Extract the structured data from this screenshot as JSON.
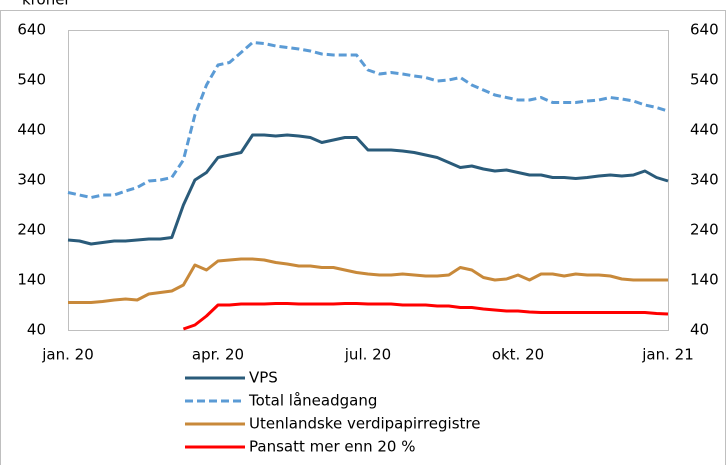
{
  "chart_data": {
    "type": "line",
    "y_label": "kroner",
    "categories": [
      "jan. 20",
      null,
      null,
      null,
      null,
      null,
      null,
      null,
      null,
      null,
      null,
      null,
      null,
      "apr. 20",
      null,
      null,
      null,
      null,
      null,
      null,
      null,
      null,
      null,
      null,
      null,
      null,
      "jul. 20",
      null,
      null,
      null,
      null,
      null,
      null,
      null,
      null,
      null,
      null,
      null,
      null,
      "okt. 20",
      null,
      null,
      null,
      null,
      null,
      null,
      null,
      null,
      null,
      null,
      null,
      null,
      "jan. 21"
    ],
    "ylim": [
      40,
      640
    ],
    "yticks": [
      40,
      140,
      240,
      340,
      440,
      540,
      640
    ],
    "y2lim": [
      40,
      640
    ],
    "y2ticks": [
      40,
      140,
      240,
      340,
      440,
      540,
      640
    ],
    "grid": false,
    "legend": "bottom",
    "series": [
      {
        "name": "VPS",
        "color": "#2a5b7a",
        "style": "solid",
        "values": [
          220,
          218,
          212,
          215,
          218,
          218,
          220,
          222,
          222,
          225,
          290,
          340,
          355,
          385,
          390,
          395,
          430,
          430,
          428,
          430,
          428,
          425,
          415,
          420,
          425,
          425,
          400,
          400,
          400,
          398,
          395,
          390,
          385,
          375,
          365,
          368,
          362,
          358,
          360,
          355,
          350,
          350,
          345,
          345,
          343,
          345,
          348,
          350,
          348,
          350,
          358,
          345,
          338
        ]
      },
      {
        "name": "Total låneadgang",
        "color": "#5b9bd5",
        "style": "dashed",
        "values": [
          315,
          310,
          305,
          310,
          310,
          318,
          325,
          338,
          340,
          345,
          380,
          470,
          530,
          570,
          575,
          595,
          615,
          613,
          608,
          605,
          602,
          598,
          592,
          590,
          590,
          590,
          560,
          552,
          555,
          552,
          548,
          545,
          538,
          540,
          545,
          530,
          520,
          510,
          505,
          500,
          500,
          505,
          495,
          495,
          495,
          498,
          500,
          505,
          502,
          498,
          490,
          485,
          478
        ]
      },
      {
        "name": "Utenlandske verdipapirregistre",
        "color": "#c8893a",
        "style": "solid",
        "values": [
          95,
          95,
          95,
          97,
          100,
          102,
          100,
          112,
          115,
          118,
          130,
          170,
          160,
          178,
          180,
          182,
          182,
          180,
          175,
          172,
          168,
          168,
          165,
          165,
          160,
          155,
          152,
          150,
          150,
          152,
          150,
          148,
          148,
          150,
          165,
          160,
          145,
          140,
          142,
          150,
          140,
          152,
          152,
          148,
          152,
          150,
          150,
          148,
          142,
          140,
          140,
          140,
          140
        ]
      },
      {
        "name": "Pansatt mer enn 20 %",
        "color": "#ff0000",
        "style": "solid",
        "values": [
          null,
          null,
          null,
          null,
          null,
          null,
          null,
          null,
          null,
          null,
          42,
          50,
          68,
          90,
          90,
          92,
          92,
          92,
          93,
          93,
          92,
          92,
          92,
          92,
          93,
          93,
          92,
          92,
          92,
          90,
          90,
          90,
          88,
          88,
          85,
          85,
          82,
          80,
          78,
          78,
          76,
          75,
          75,
          75,
          75,
          75,
          75,
          75,
          75,
          75,
          75,
          73,
          72
        ]
      }
    ]
  }
}
